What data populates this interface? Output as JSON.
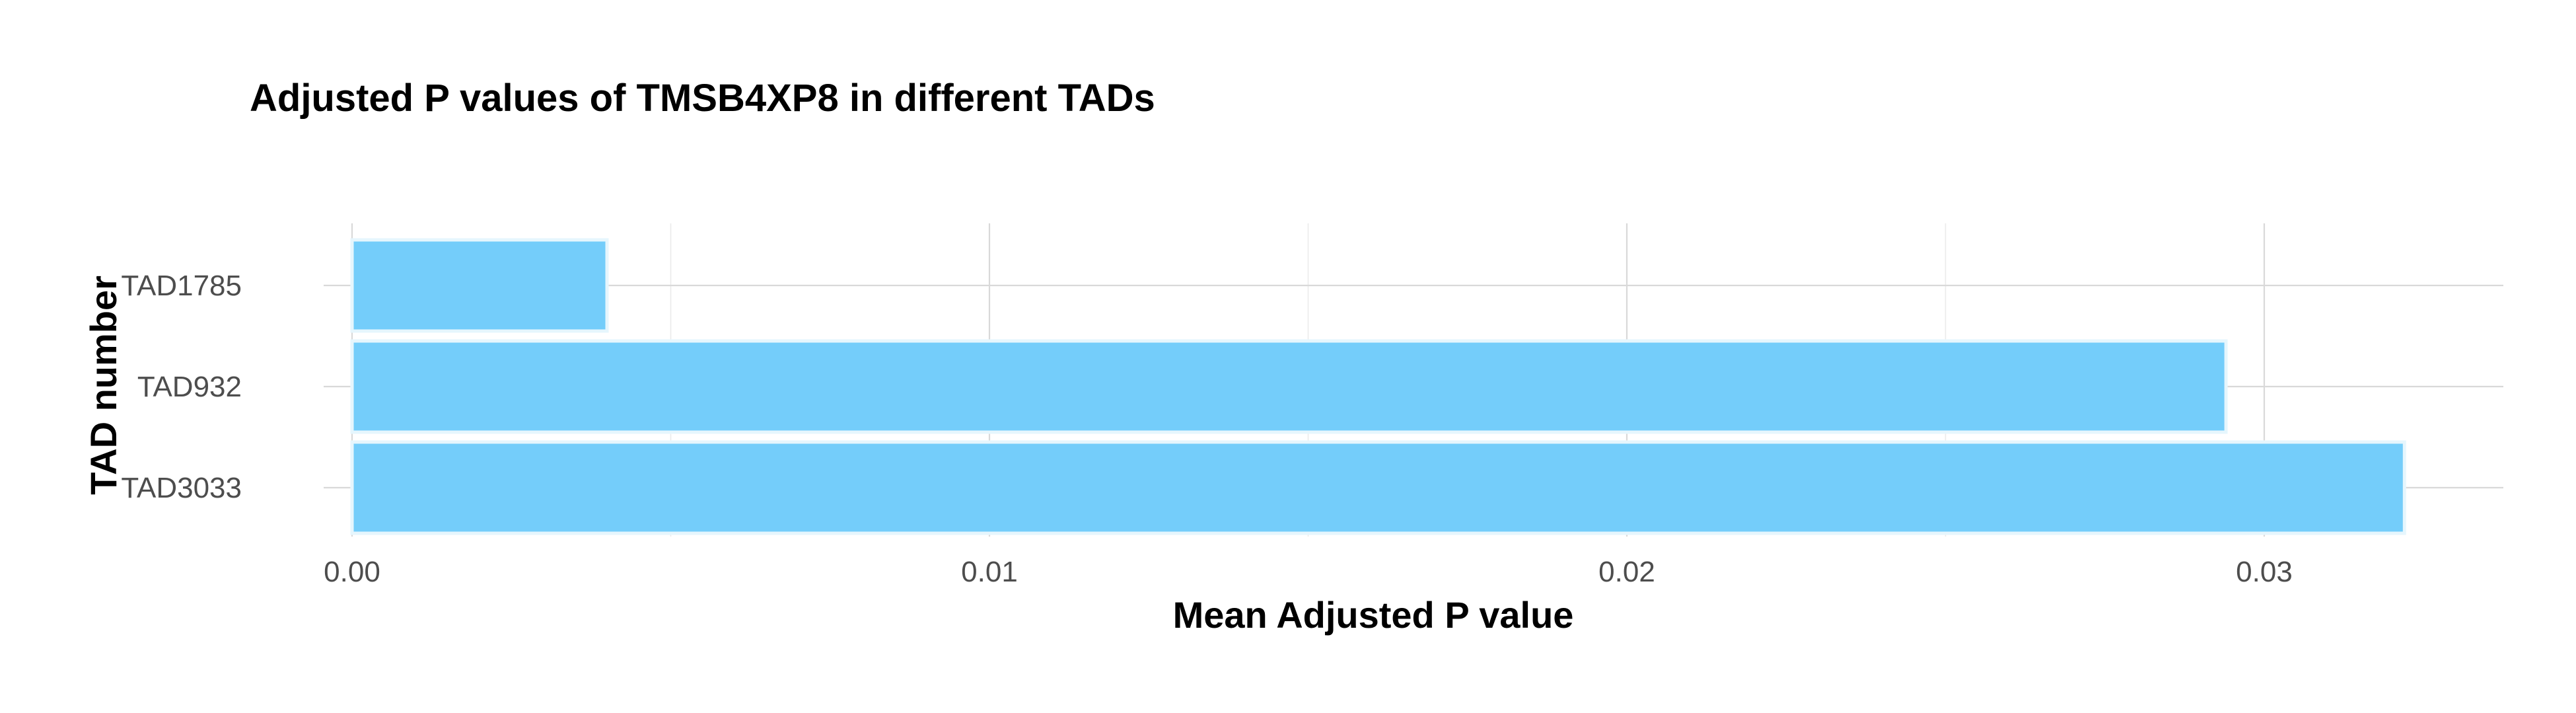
{
  "chart_data": {
    "type": "bar",
    "orientation": "horizontal",
    "title": "Adjusted P values of TMSB4XP8 in different TADs",
    "xlabel": "Mean Adjusted P value",
    "ylabel": "TAD number",
    "categories": [
      "TAD1785",
      "TAD932",
      "TAD3033"
    ],
    "values": [
      0.004,
      0.0294,
      0.0322
    ],
    "xlim": [
      0,
      0.0338
    ],
    "xticks": [
      0.0,
      0.01,
      0.02,
      0.03
    ],
    "xtick_labels": [
      "0.00",
      "0.01",
      "0.02",
      "0.03"
    ],
    "bar_color": "#74cdfa",
    "grid": true,
    "legend": "none"
  }
}
